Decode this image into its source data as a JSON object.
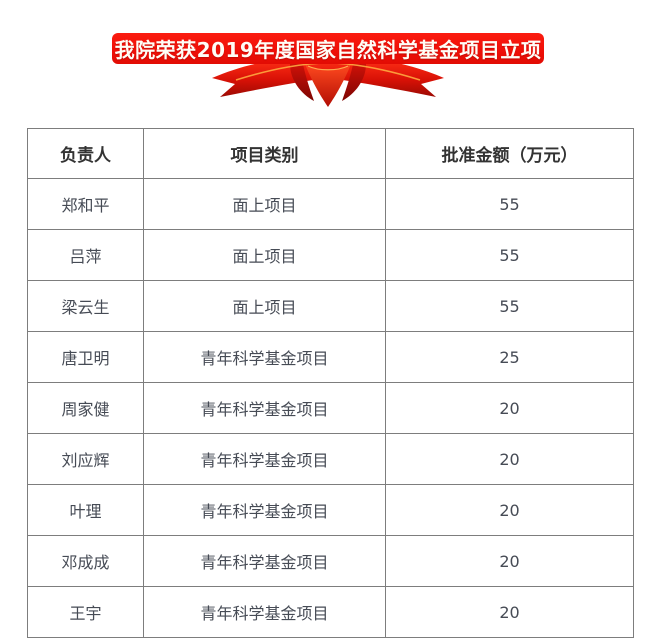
{
  "banner": {
    "text": "我院荣获2019年度国家自然科学基金项目立项",
    "bg_color": "#f01008",
    "text_color": "#fffdf6"
  },
  "ribbon": {
    "name": "red-silk-ribbon",
    "color_main": "#d01108",
    "color_dark": "#8f0703",
    "color_highlight": "#ffb143"
  },
  "table": {
    "border_color": "#7d7d7d",
    "headers": [
      "负责人",
      "项目类别",
      "批准金额（万元）"
    ],
    "rows": [
      [
        "郑和平",
        "面上项目",
        "55"
      ],
      [
        "吕萍",
        "面上项目",
        "55"
      ],
      [
        "梁云生",
        "面上项目",
        "55"
      ],
      [
        "唐卫明",
        "青年科学基金项目",
        "25"
      ],
      [
        "周家健",
        "青年科学基金项目",
        "20"
      ],
      [
        "刘应辉",
        "青年科学基金项目",
        "20"
      ],
      [
        "叶理",
        "青年科学基金项目",
        "20"
      ],
      [
        "邓成成",
        "青年科学基金项目",
        "20"
      ],
      [
        "王宇",
        "青年科学基金项目",
        "20"
      ]
    ]
  }
}
